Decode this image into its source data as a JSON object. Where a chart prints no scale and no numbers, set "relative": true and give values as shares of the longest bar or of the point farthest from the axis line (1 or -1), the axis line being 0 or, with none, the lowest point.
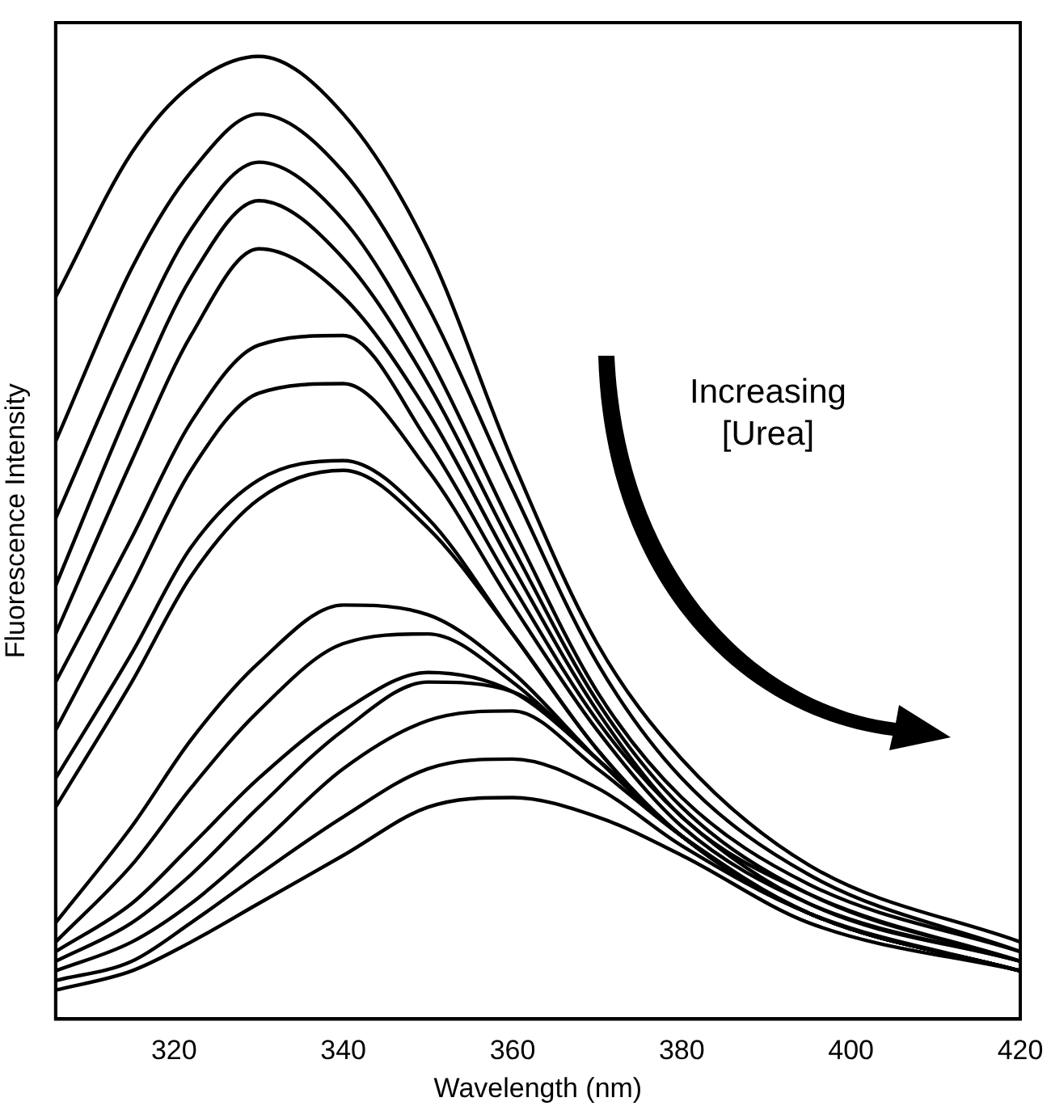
{
  "chart_data": {
    "type": "line",
    "relative": true,
    "xlabel": "Wavelength (nm)",
    "ylabel": "Fluorescence Intensity",
    "xlim": [
      306,
      420
    ],
    "xticks": [
      320,
      340,
      360,
      380,
      400,
      420
    ],
    "grid": false,
    "legend": false,
    "marker": "none",
    "line_style": "solid",
    "annotations": [
      "Increasing [Urea]"
    ],
    "x": [
      306,
      315,
      322,
      330,
      340,
      350,
      360,
      370,
      380,
      395,
      420
    ],
    "series": [
      {
        "color": "#000000",
        "values": [
          0.75,
          0.9,
          0.97,
          1,
          0.94,
          0.8,
          0.58,
          0.39,
          0.27,
          0.16,
          0.08
        ]
      },
      {
        "color": "#000000",
        "values": [
          0.6,
          0.78,
          0.88,
          0.94,
          0.88,
          0.74,
          0.55,
          0.37,
          0.25,
          0.15,
          0.07
        ]
      },
      {
        "color": "#000000",
        "values": [
          0.52,
          0.7,
          0.82,
          0.89,
          0.83,
          0.69,
          0.51,
          0.34,
          0.23,
          0.14,
          0.07
        ]
      },
      {
        "color": "#000000",
        "values": [
          0.45,
          0.64,
          0.77,
          0.85,
          0.79,
          0.66,
          0.49,
          0.33,
          0.22,
          0.13,
          0.06
        ]
      },
      {
        "color": "#000000",
        "values": [
          0.4,
          0.58,
          0.71,
          0.8,
          0.75,
          0.63,
          0.47,
          0.32,
          0.21,
          0.13,
          0.06
        ]
      },
      {
        "color": "#000000",
        "values": [
          0.35,
          0.5,
          0.62,
          0.7,
          0.71,
          0.6,
          0.45,
          0.31,
          0.21,
          0.12,
          0.06
        ]
      },
      {
        "color": "#000000",
        "values": [
          0.3,
          0.45,
          0.57,
          0.65,
          0.66,
          0.57,
          0.43,
          0.3,
          0.2,
          0.12,
          0.06
        ]
      },
      {
        "color": "#000000",
        "values": [
          0.25,
          0.38,
          0.49,
          0.56,
          0.58,
          0.52,
          0.4,
          0.28,
          0.19,
          0.11,
          0.05
        ]
      },
      {
        "color": "#000000",
        "values": [
          0.22,
          0.35,
          0.46,
          0.54,
          0.57,
          0.51,
          0.4,
          0.28,
          0.19,
          0.11,
          0.05
        ]
      },
      {
        "color": "#000000",
        "values": [
          0.1,
          0.2,
          0.29,
          0.37,
          0.43,
          0.42,
          0.36,
          0.27,
          0.19,
          0.11,
          0.05
        ]
      },
      {
        "color": "#000000",
        "values": [
          0.08,
          0.16,
          0.24,
          0.32,
          0.39,
          0.4,
          0.35,
          0.27,
          0.19,
          0.11,
          0.05
        ]
      },
      {
        "color": "#000000",
        "values": [
          0.07,
          0.12,
          0.18,
          0.25,
          0.32,
          0.36,
          0.34,
          0.27,
          0.19,
          0.11,
          0.05
        ]
      },
      {
        "color": "#000000",
        "values": [
          0.06,
          0.1,
          0.15,
          0.22,
          0.3,
          0.35,
          0.34,
          0.27,
          0.19,
          0.11,
          0.05
        ]
      },
      {
        "color": "#000000",
        "values": [
          0.05,
          0.08,
          0.12,
          0.18,
          0.26,
          0.31,
          0.32,
          0.26,
          0.19,
          0.11,
          0.05
        ]
      },
      {
        "color": "#000000",
        "values": [
          0.04,
          0.06,
          0.1,
          0.15,
          0.21,
          0.26,
          0.27,
          0.24,
          0.18,
          0.11,
          0.05
        ]
      },
      {
        "color": "#000000",
        "values": [
          0.03,
          0.05,
          0.08,
          0.12,
          0.17,
          0.22,
          0.23,
          0.21,
          0.17,
          0.1,
          0.05
        ]
      }
    ]
  }
}
